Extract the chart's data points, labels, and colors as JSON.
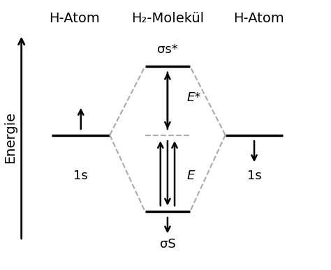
{
  "title_left": "H-Atom",
  "title_center": "H₂-Molekül",
  "title_right": "H-Atom",
  "ylabel": "Energie",
  "label_sigma_star": "σs*",
  "label_sigma_s": "σS",
  "label_E_star": "E*",
  "label_E": "E",
  "label_1s_left": "1s",
  "label_1s_right": "1s",
  "background_color": "#ffffff",
  "line_color": "#000000",
  "dashed_color": "#aaaaaa",
  "fontsize_title": 14,
  "fontsize_label": 13,
  "fontsize_axis": 14
}
